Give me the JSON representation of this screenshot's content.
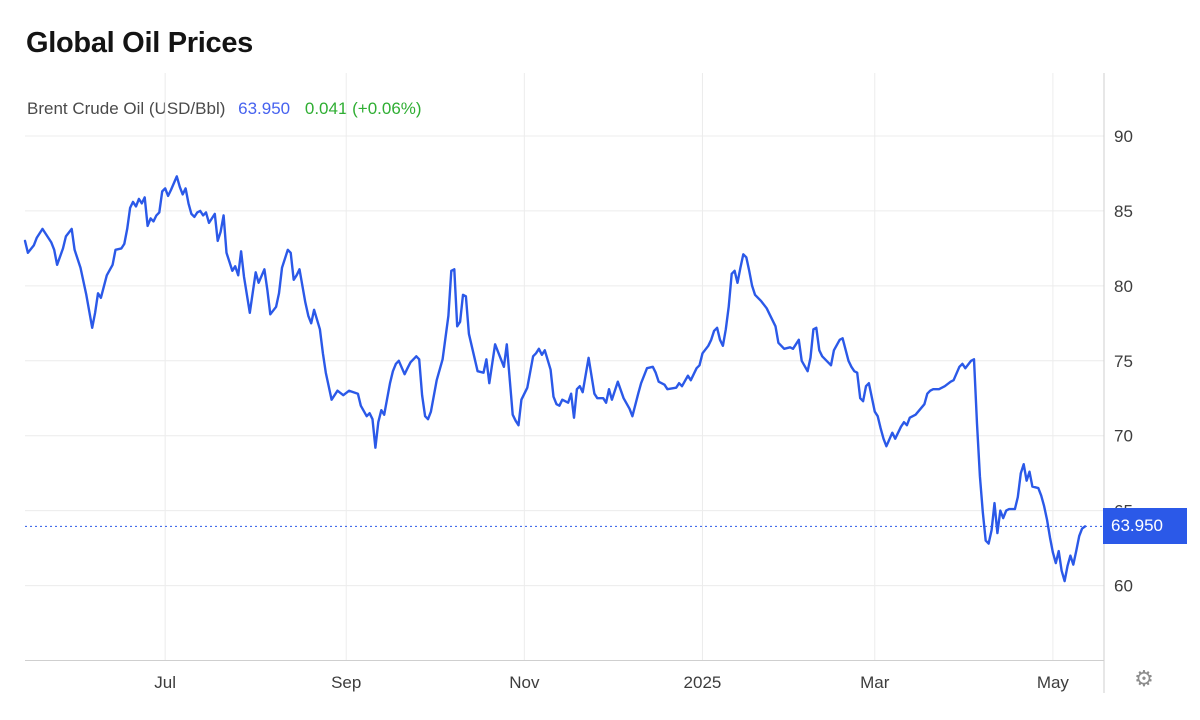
{
  "header": {
    "title": "Global Oil Prices"
  },
  "legend": {
    "series_label": "Brent Crude Oil (USD/Bbl)",
    "last_price": "63.950",
    "change": "0.041 (+0.06%)"
  },
  "icons": {
    "settings": "⚙"
  },
  "colors": {
    "accent": "#2b59e8",
    "price_text": "#4662ef",
    "change_green": "#2fae33",
    "grid": "#ececec",
    "axis": "#cfcfcf",
    "tick_text": "#3d3d3d",
    "badge_text": "#ffffff",
    "title_text": "#141414",
    "label_text": "#4a4a4a",
    "gear": "#8d8d8d"
  },
  "chart_data": {
    "type": "line",
    "title": "Global Oil Prices",
    "series_name": "Brent Crude Oil (USD/Bbl)",
    "unit": "USD/Bbl",
    "last_price": 63.95,
    "last_price_label": "63.950",
    "change": 0.041,
    "change_pct": "+0.06%",
    "current_price_line": 63.95,
    "grid": true,
    "legend_position": "top-left",
    "x_axis": {
      "start_date": "2024-05-14",
      "end_date": "2025-05-12",
      "total_days": 363,
      "ticks": [
        {
          "label": "Jul",
          "day": 48
        },
        {
          "label": "Sep",
          "day": 110
        },
        {
          "label": "Nov",
          "day": 171
        },
        {
          "label": "2025",
          "day": 232
        },
        {
          "label": "Mar",
          "day": 291
        },
        {
          "label": "May",
          "day": 352
        }
      ]
    },
    "y_axis": {
      "ticks": [
        60,
        65,
        70,
        75,
        80,
        85,
        90
      ],
      "range": [
        55.0,
        94.2
      ]
    },
    "points": [
      [
        0,
        83.0
      ],
      [
        1,
        82.2
      ],
      [
        3,
        82.7
      ],
      [
        4,
        83.2
      ],
      [
        6,
        83.8
      ],
      [
        9,
        82.9
      ],
      [
        10,
        82.4
      ],
      [
        11,
        81.4
      ],
      [
        13,
        82.5
      ],
      [
        14,
        83.3
      ],
      [
        16,
        83.8
      ],
      [
        17,
        82.4
      ],
      [
        19,
        81.2
      ],
      [
        21,
        79.4
      ],
      [
        23,
        77.2
      ],
      [
        24,
        78.2
      ],
      [
        25,
        79.5
      ],
      [
        26,
        79.2
      ],
      [
        28,
        80.7
      ],
      [
        30,
        81.4
      ],
      [
        31,
        82.4
      ],
      [
        33,
        82.5
      ],
      [
        34,
        82.8
      ],
      [
        35,
        83.8
      ],
      [
        36,
        85.2
      ],
      [
        37,
        85.6
      ],
      [
        38,
        85.3
      ],
      [
        39,
        85.8
      ],
      [
        40,
        85.5
      ],
      [
        41,
        85.9
      ],
      [
        42,
        84.0
      ],
      [
        43,
        84.5
      ],
      [
        44,
        84.3
      ],
      [
        45,
        84.7
      ],
      [
        46,
        84.9
      ],
      [
        47,
        86.3
      ],
      [
        48,
        86.5
      ],
      [
        49,
        86.0
      ],
      [
        50,
        86.4
      ],
      [
        52,
        87.3
      ],
      [
        53,
        86.6
      ],
      [
        54,
        86.1
      ],
      [
        55,
        86.5
      ],
      [
        56,
        85.5
      ],
      [
        57,
        84.8
      ],
      [
        58,
        84.6
      ],
      [
        59,
        84.9
      ],
      [
        60,
        85.0
      ],
      [
        61,
        84.7
      ],
      [
        62,
        84.9
      ],
      [
        63,
        84.2
      ],
      [
        64,
        84.5
      ],
      [
        65,
        84.8
      ],
      [
        66,
        83.0
      ],
      [
        67,
        83.6
      ],
      [
        68,
        84.7
      ],
      [
        69,
        82.2
      ],
      [
        70,
        81.6
      ],
      [
        71,
        81.0
      ],
      [
        72,
        81.3
      ],
      [
        73,
        80.7
      ],
      [
        74,
        82.3
      ],
      [
        75,
        80.6
      ],
      [
        77,
        78.2
      ],
      [
        79,
        80.9
      ],
      [
        80,
        80.2
      ],
      [
        82,
        81.1
      ],
      [
        83,
        79.7
      ],
      [
        84,
        78.1
      ],
      [
        86,
        78.6
      ],
      [
        87,
        79.5
      ],
      [
        88,
        81.2
      ],
      [
        90,
        82.4
      ],
      [
        91,
        82.2
      ],
      [
        92,
        80.4
      ],
      [
        93,
        80.7
      ],
      [
        94,
        81.1
      ],
      [
        96,
        78.9
      ],
      [
        97,
        78.0
      ],
      [
        98,
        77.5
      ],
      [
        99,
        78.4
      ],
      [
        101,
        77.1
      ],
      [
        102,
        75.5
      ],
      [
        103,
        74.2
      ],
      [
        105,
        72.4
      ],
      [
        107,
        73.0
      ],
      [
        109,
        72.7
      ],
      [
        111,
        73.0
      ],
      [
        114,
        72.8
      ],
      [
        115,
        72.0
      ],
      [
        117,
        71.3
      ],
      [
        118,
        71.5
      ],
      [
        119,
        71.1
      ],
      [
        120,
        69.2
      ],
      [
        121,
        70.9
      ],
      [
        122,
        71.7
      ],
      [
        123,
        71.4
      ],
      [
        125,
        73.5
      ],
      [
        126,
        74.3
      ],
      [
        127,
        74.8
      ],
      [
        128,
        75.0
      ],
      [
        130,
        74.1
      ],
      [
        131,
        74.5
      ],
      [
        132,
        74.9
      ],
      [
        134,
        75.3
      ],
      [
        135,
        75.1
      ],
      [
        136,
        72.7
      ],
      [
        137,
        71.3
      ],
      [
        138,
        71.1
      ],
      [
        139,
        71.6
      ],
      [
        141,
        73.7
      ],
      [
        143,
        75.1
      ],
      [
        145,
        78.0
      ],
      [
        146,
        81.0
      ],
      [
        147,
        81.1
      ],
      [
        148,
        77.3
      ],
      [
        149,
        77.6
      ],
      [
        150,
        79.4
      ],
      [
        151,
        79.3
      ],
      [
        152,
        76.8
      ],
      [
        155,
        74.3
      ],
      [
        157,
        74.2
      ],
      [
        158,
        75.1
      ],
      [
        159,
        73.5
      ],
      [
        161,
        76.1
      ],
      [
        164,
        74.6
      ],
      [
        165,
        76.1
      ],
      [
        167,
        71.4
      ],
      [
        168,
        71.0
      ],
      [
        169,
        70.7
      ],
      [
        170,
        72.4
      ],
      [
        172,
        73.2
      ],
      [
        174,
        75.3
      ],
      [
        175,
        75.5
      ],
      [
        176,
        75.8
      ],
      [
        177,
        75.4
      ],
      [
        178,
        75.7
      ],
      [
        180,
        74.4
      ],
      [
        181,
        72.6
      ],
      [
        182,
        72.1
      ],
      [
        183,
        72.0
      ],
      [
        184,
        72.4
      ],
      [
        186,
        72.2
      ],
      [
        187,
        72.8
      ],
      [
        188,
        71.2
      ],
      [
        189,
        73.1
      ],
      [
        190,
        73.3
      ],
      [
        191,
        72.9
      ],
      [
        193,
        75.2
      ],
      [
        195,
        72.8
      ],
      [
        196,
        72.5
      ],
      [
        198,
        72.5
      ],
      [
        199,
        72.2
      ],
      [
        200,
        73.1
      ],
      [
        201,
        72.4
      ],
      [
        203,
        73.6
      ],
      [
        205,
        72.5
      ],
      [
        207,
        71.8
      ],
      [
        208,
        71.3
      ],
      [
        210,
        72.8
      ],
      [
        211,
        73.5
      ],
      [
        213,
        74.5
      ],
      [
        215,
        74.6
      ],
      [
        216,
        74.2
      ],
      [
        217,
        73.6
      ],
      [
        219,
        73.4
      ],
      [
        220,
        73.1
      ],
      [
        223,
        73.2
      ],
      [
        224,
        73.5
      ],
      [
        225,
        73.3
      ],
      [
        227,
        74.0
      ],
      [
        228,
        73.7
      ],
      [
        229,
        74.1
      ],
      [
        230,
        74.5
      ],
      [
        231,
        74.7
      ],
      [
        232,
        75.5
      ],
      [
        234,
        76.0
      ],
      [
        235,
        76.4
      ],
      [
        236,
        77.0
      ],
      [
        237,
        77.2
      ],
      [
        238,
        76.4
      ],
      [
        239,
        76.0
      ],
      [
        240,
        77.1
      ],
      [
        241,
        78.6
      ],
      [
        242,
        80.8
      ],
      [
        243,
        81.0
      ],
      [
        244,
        80.2
      ],
      [
        245,
        81.2
      ],
      [
        246,
        82.1
      ],
      [
        247,
        81.9
      ],
      [
        248,
        81.0
      ],
      [
        249,
        80.0
      ],
      [
        250,
        79.4
      ],
      [
        252,
        79.0
      ],
      [
        254,
        78.5
      ],
      [
        255,
        78.1
      ],
      [
        257,
        77.3
      ],
      [
        258,
        76.2
      ],
      [
        260,
        75.8
      ],
      [
        262,
        75.9
      ],
      [
        263,
        75.8
      ],
      [
        265,
        76.4
      ],
      [
        266,
        75.0
      ],
      [
        268,
        74.3
      ],
      [
        269,
        75.2
      ],
      [
        270,
        77.1
      ],
      [
        271,
        77.2
      ],
      [
        272,
        75.7
      ],
      [
        273,
        75.3
      ],
      [
        276,
        74.7
      ],
      [
        277,
        75.7
      ],
      [
        279,
        76.4
      ],
      [
        280,
        76.5
      ],
      [
        282,
        75.0
      ],
      [
        283,
        74.6
      ],
      [
        284,
        74.3
      ],
      [
        285,
        74.2
      ],
      [
        286,
        72.5
      ],
      [
        287,
        72.3
      ],
      [
        288,
        73.3
      ],
      [
        289,
        73.5
      ],
      [
        291,
        71.6
      ],
      [
        292,
        71.3
      ],
      [
        293,
        70.5
      ],
      [
        294,
        69.8
      ],
      [
        295,
        69.3
      ],
      [
        297,
        70.2
      ],
      [
        298,
        69.8
      ],
      [
        300,
        70.6
      ],
      [
        301,
        70.9
      ],
      [
        302,
        70.7
      ],
      [
        303,
        71.2
      ],
      [
        305,
        71.4
      ],
      [
        308,
        72.1
      ],
      [
        309,
        72.8
      ],
      [
        310,
        73.0
      ],
      [
        311,
        73.1
      ],
      [
        313,
        73.1
      ],
      [
        315,
        73.3
      ],
      [
        317,
        73.6
      ],
      [
        318,
        73.7
      ],
      [
        320,
        74.6
      ],
      [
        321,
        74.8
      ],
      [
        322,
        74.5
      ],
      [
        324,
        75.0
      ],
      [
        325,
        75.1
      ],
      [
        326,
        70.8
      ],
      [
        327,
        67.3
      ],
      [
        328,
        64.9
      ],
      [
        329,
        63.0
      ],
      [
        330,
        62.8
      ],
      [
        331,
        63.7
      ],
      [
        332,
        65.5
      ],
      [
        333,
        63.5
      ],
      [
        334,
        65.0
      ],
      [
        335,
        64.5
      ],
      [
        336,
        65.0
      ],
      [
        337,
        65.1
      ],
      [
        339,
        65.1
      ],
      [
        340,
        65.9
      ],
      [
        341,
        67.5
      ],
      [
        342,
        68.1
      ],
      [
        343,
        67.0
      ],
      [
        344,
        67.6
      ],
      [
        345,
        66.6
      ],
      [
        347,
        66.5
      ],
      [
        348,
        66.0
      ],
      [
        349,
        65.3
      ],
      [
        350,
        64.4
      ],
      [
        351,
        63.2
      ],
      [
        352,
        62.2
      ],
      [
        353,
        61.5
      ],
      [
        354,
        62.3
      ],
      [
        355,
        61.0
      ],
      [
        356,
        60.3
      ],
      [
        357,
        61.3
      ],
      [
        358,
        62.0
      ],
      [
        359,
        61.4
      ],
      [
        360,
        62.3
      ],
      [
        361,
        63.3
      ],
      [
        362,
        63.8
      ],
      [
        363,
        63.95
      ]
    ]
  }
}
